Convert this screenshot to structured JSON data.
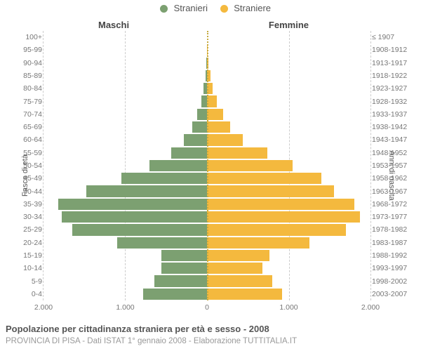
{
  "chart": {
    "type": "population-pyramid",
    "legend": {
      "male": {
        "label": "Stranieri",
        "color": "#7ca071"
      },
      "female": {
        "label": "Straniere",
        "color": "#f4b93e"
      }
    },
    "column_titles": {
      "male": "Maschi",
      "female": "Femmine"
    },
    "y_left_title": "Fasce di età",
    "y_right_title": "Anni di nascita",
    "x_ticks_left": [
      "2.000",
      "1.000",
      "0"
    ],
    "x_ticks_right": [
      "0",
      "1.000",
      "2.000"
    ],
    "x_max": 2000,
    "grid_vals_left": [
      2000,
      1000
    ],
    "grid_vals_right": [
      1000,
      2000
    ],
    "grid_color": "#cccccc",
    "center_line_color": "#c5a93f",
    "background_color": "#ffffff",
    "font_family": "Arial",
    "label_fontsize": 10.5,
    "label_color": "#777777",
    "title_color": "#555555",
    "subtitle_color": "#999999",
    "rows": [
      {
        "age": "0-4",
        "birth": "2003-2007",
        "m": 780,
        "f": 920
      },
      {
        "age": "5-9",
        "birth": "1998-2002",
        "m": 640,
        "f": 800
      },
      {
        "age": "10-14",
        "birth": "1993-1997",
        "m": 560,
        "f": 680
      },
      {
        "age": "15-19",
        "birth": "1988-1992",
        "m": 560,
        "f": 760
      },
      {
        "age": "20-24",
        "birth": "1983-1987",
        "m": 1100,
        "f": 1250
      },
      {
        "age": "25-29",
        "birth": "1978-1982",
        "m": 1650,
        "f": 1700
      },
      {
        "age": "30-34",
        "birth": "1973-1977",
        "m": 1780,
        "f": 1870
      },
      {
        "age": "35-39",
        "birth": "1968-1972",
        "m": 1820,
        "f": 1800
      },
      {
        "age": "40-44",
        "birth": "1963-1967",
        "m": 1480,
        "f": 1550
      },
      {
        "age": "45-49",
        "birth": "1958-1962",
        "m": 1050,
        "f": 1400
      },
      {
        "age": "50-54",
        "birth": "1953-1957",
        "m": 700,
        "f": 1050
      },
      {
        "age": "55-59",
        "birth": "1948-1952",
        "m": 440,
        "f": 740
      },
      {
        "age": "60-64",
        "birth": "1943-1947",
        "m": 280,
        "f": 440
      },
      {
        "age": "65-69",
        "birth": "1938-1942",
        "m": 180,
        "f": 280
      },
      {
        "age": "70-74",
        "birth": "1933-1937",
        "m": 120,
        "f": 200
      },
      {
        "age": "75-79",
        "birth": "1928-1932",
        "m": 70,
        "f": 120
      },
      {
        "age": "80-84",
        "birth": "1923-1927",
        "m": 40,
        "f": 70
      },
      {
        "age": "85-89",
        "birth": "1918-1922",
        "m": 20,
        "f": 40
      },
      {
        "age": "90-94",
        "birth": "1913-1917",
        "m": 5,
        "f": 15
      },
      {
        "age": "95-99",
        "birth": "1908-1912",
        "m": 0,
        "f": 5
      },
      {
        "age": "100+",
        "birth": "≤ 1907",
        "m": 0,
        "f": 0
      }
    ],
    "footer_title": "Popolazione per cittadinanza straniera per età e sesso - 2008",
    "footer_sub": "PROVINCIA DI PISA - Dati ISTAT 1° gennaio 2008 - Elaborazione TUTTITALIA.IT"
  }
}
